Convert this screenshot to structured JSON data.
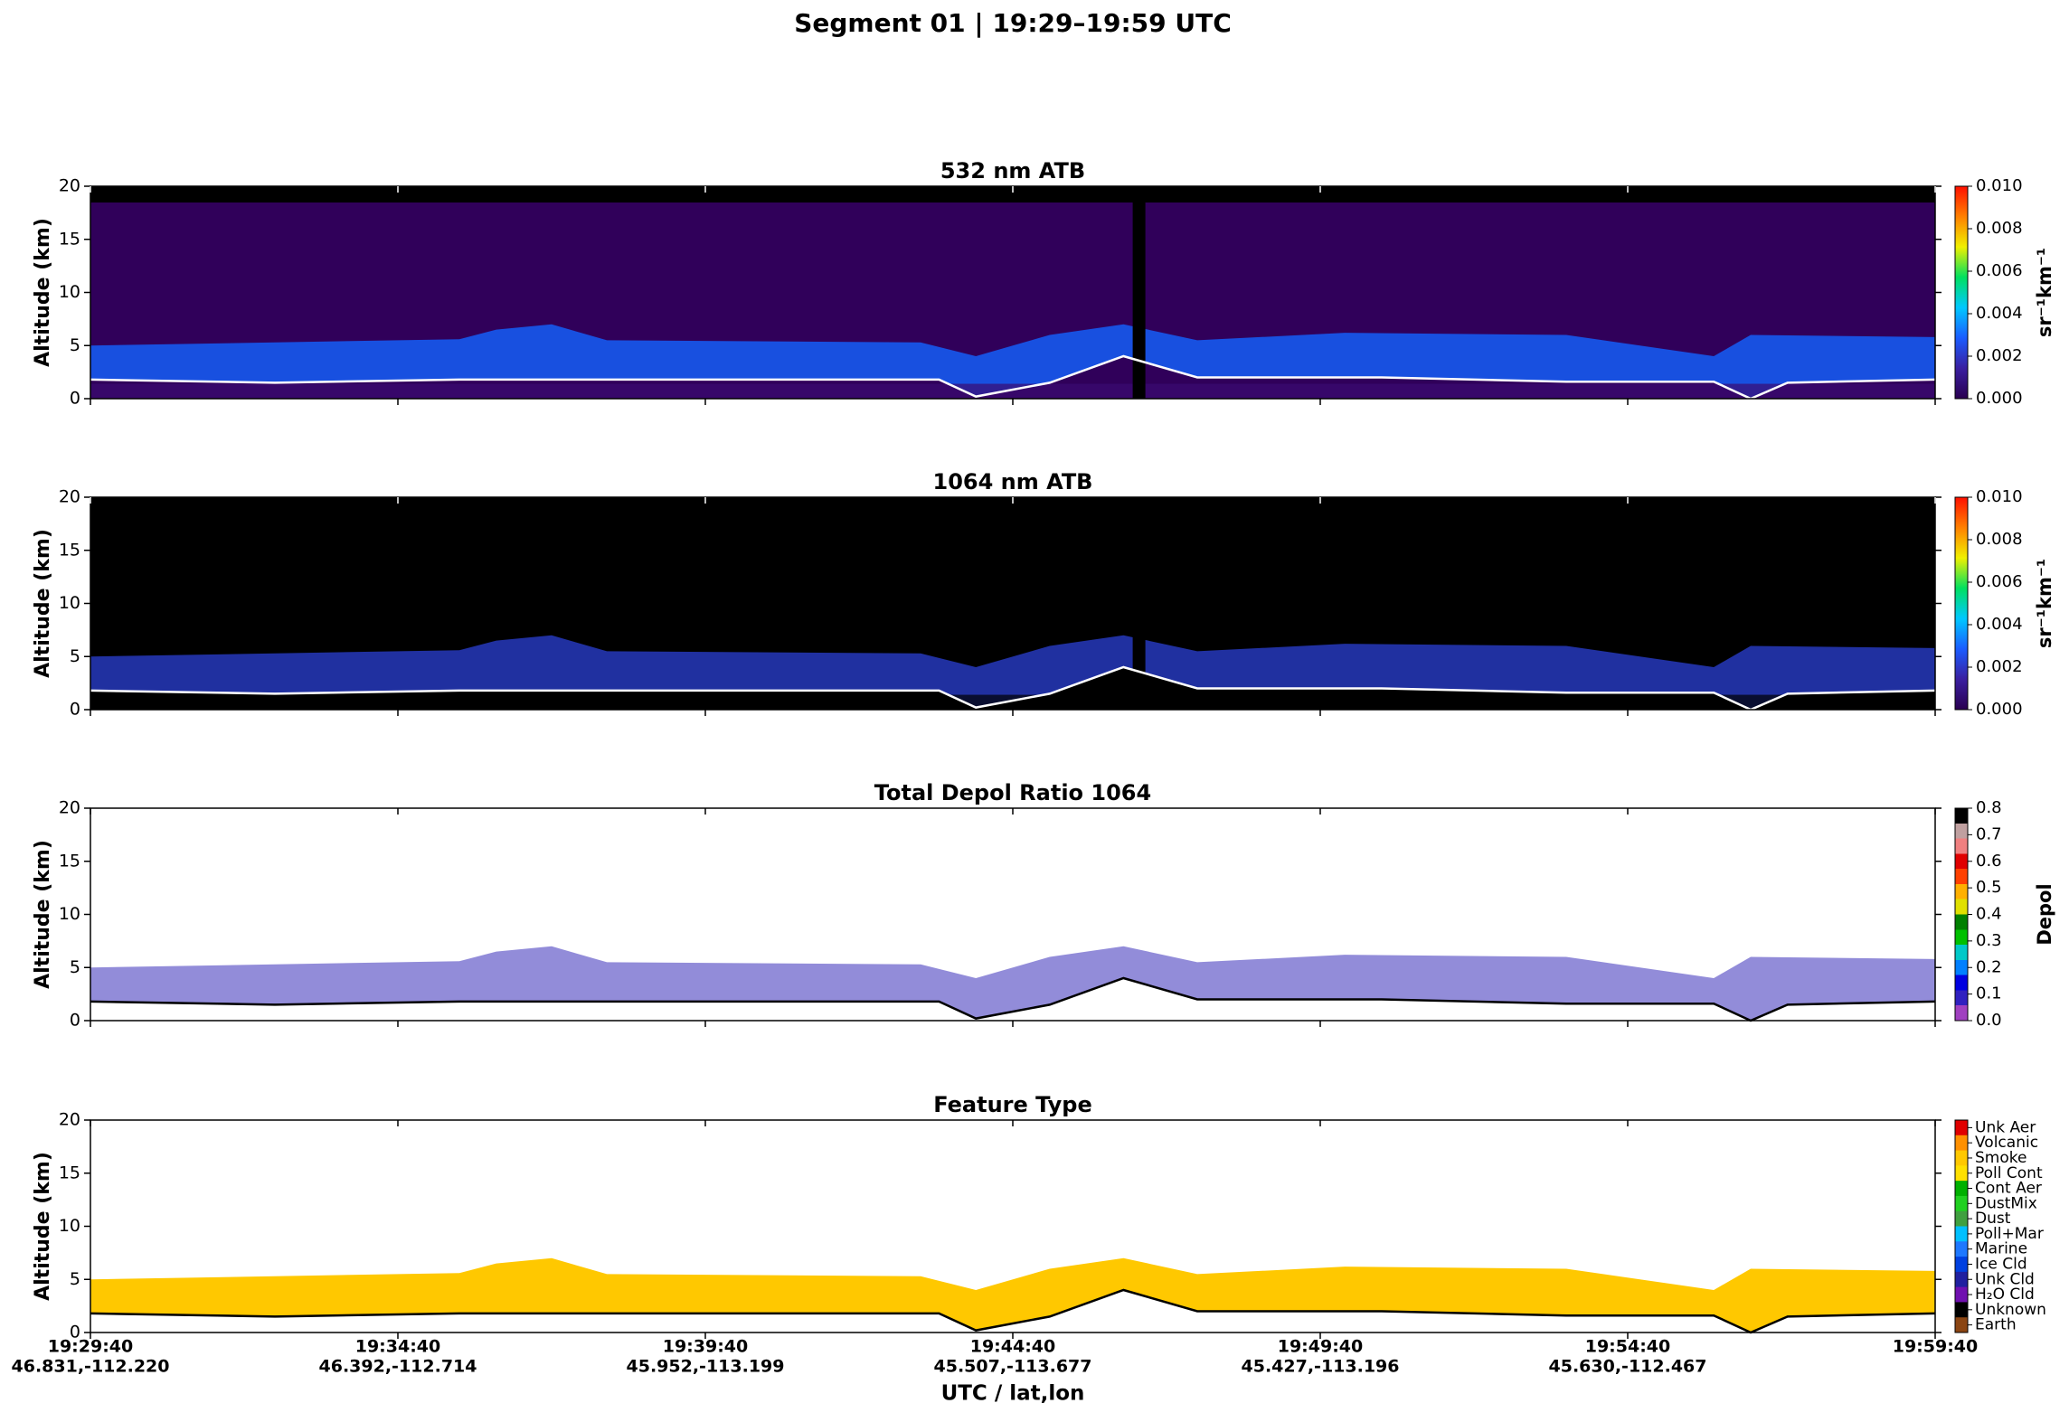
{
  "title": "Segment 01  |  19:29–19:59 UTC",
  "xlabel": "UTC / lat,lon",
  "xtick_labels": [
    [
      "19:29:40",
      "46.831,-112.220"
    ],
    [
      "19:34:40",
      "46.392,-112.714"
    ],
    [
      "19:39:40",
      "45.952,-113.199"
    ],
    [
      "19:44:40",
      "45.507,-113.677"
    ],
    [
      "19:49:40",
      "45.427,-113.196"
    ],
    [
      "19:54:40",
      "45.630,-112.467"
    ],
    [
      "19:59:40",
      null
    ]
  ],
  "chart_data": [
    {
      "type": "heatmap",
      "title": "532 nm ATB",
      "ylabel": "Altitude (km)",
      "ylim": [
        0,
        20
      ],
      "yticks": [
        0,
        5,
        10,
        15,
        20
      ],
      "colorbar": {
        "label": "sr⁻¹km⁻¹",
        "lim": [
          0,
          0.01
        ],
        "colors": [
          "#2a0050",
          "#3a1fa0",
          "#1a5cff",
          "#00c8ff",
          "#00e060",
          "#f0f000",
          "#ff8000",
          "#ff1000"
        ],
        "ticks": [
          {
            "value": 0,
            "label": "0.000"
          },
          {
            "value": 0.002,
            "label": "0.002"
          },
          {
            "value": 0.004,
            "label": "0.004"
          },
          {
            "value": 0.006,
            "label": "0.006"
          },
          {
            "value": 0.008,
            "label": "0.008"
          },
          {
            "value": 0.01,
            "label": "0.010"
          }
        ]
      }
    },
    {
      "type": "heatmap",
      "title": "1064 nm ATB",
      "ylabel": "Altitude (km)",
      "ylim": [
        0,
        20
      ],
      "yticks": [
        0,
        5,
        10,
        15,
        20
      ],
      "colorbar": {
        "label": "sr⁻¹km⁻¹",
        "lim": [
          0,
          0.01
        ],
        "colors": [
          "#2a0050",
          "#3a1fa0",
          "#1a5cff",
          "#00c8ff",
          "#00e060",
          "#f0f000",
          "#ff8000",
          "#ff1000"
        ],
        "ticks": [
          {
            "value": 0,
            "label": "0.000"
          },
          {
            "value": 0.002,
            "label": "0.002"
          },
          {
            "value": 0.004,
            "label": "0.004"
          },
          {
            "value": 0.006,
            "label": "0.006"
          },
          {
            "value": 0.008,
            "label": "0.008"
          },
          {
            "value": 0.01,
            "label": "0.010"
          }
        ]
      }
    },
    {
      "type": "heatmap",
      "title": "Total Depol Ratio 1064",
      "ylabel": "Altitude (km)",
      "ylim": [
        0,
        20
      ],
      "yticks": [
        0,
        5,
        10,
        15,
        20
      ],
      "colorbar": {
        "label": "Depol",
        "lim": [
          0,
          0.8
        ],
        "colors": [
          "#a040c0",
          "#3020c0",
          "#0000e0",
          "#0080ff",
          "#00c8c8",
          "#00c000",
          "#008000",
          "#e0e000",
          "#ffb000",
          "#ff4000",
          "#e00000",
          "#f08080",
          "#c0a0a0",
          "#000000"
        ],
        "ticks": [
          {
            "value": 0,
            "label": "0.0"
          },
          {
            "value": 0.1,
            "label": "0.1"
          },
          {
            "value": 0.2,
            "label": "0.2"
          },
          {
            "value": 0.3,
            "label": "0.3"
          },
          {
            "value": 0.4,
            "label": "0.4"
          },
          {
            "value": 0.5,
            "label": "0.5"
          },
          {
            "value": 0.6,
            "label": "0.6"
          },
          {
            "value": 0.7,
            "label": "0.7"
          },
          {
            "value": 0.8,
            "label": "0.8"
          }
        ]
      }
    },
    {
      "type": "classes",
      "title": "Feature Type",
      "ylabel": "Altitude (km)",
      "ylim": [
        0,
        20
      ],
      "yticks": [
        0,
        5,
        10,
        15,
        20
      ],
      "colorbar": {
        "categories": [
          "Unk Aer",
          "Volcanic",
          "Smoke",
          "Poll Cont",
          "Cont Aer",
          "DustMix",
          "Dust",
          "Poll+Mar",
          "Marine",
          "Ice Cld",
          "Unk Cld",
          "H₂O Cld",
          "Unknown",
          "Earth"
        ],
        "colors": [
          "#e00000",
          "#ff9000",
          "#ffc800",
          "#ffe000",
          "#00b000",
          "#20d020",
          "#40a040",
          "#00c0ff",
          "#1e78ff",
          "#0040e0",
          "#2020a0",
          "#7010b0",
          "#000000",
          "#8b4513"
        ]
      }
    }
  ]
}
